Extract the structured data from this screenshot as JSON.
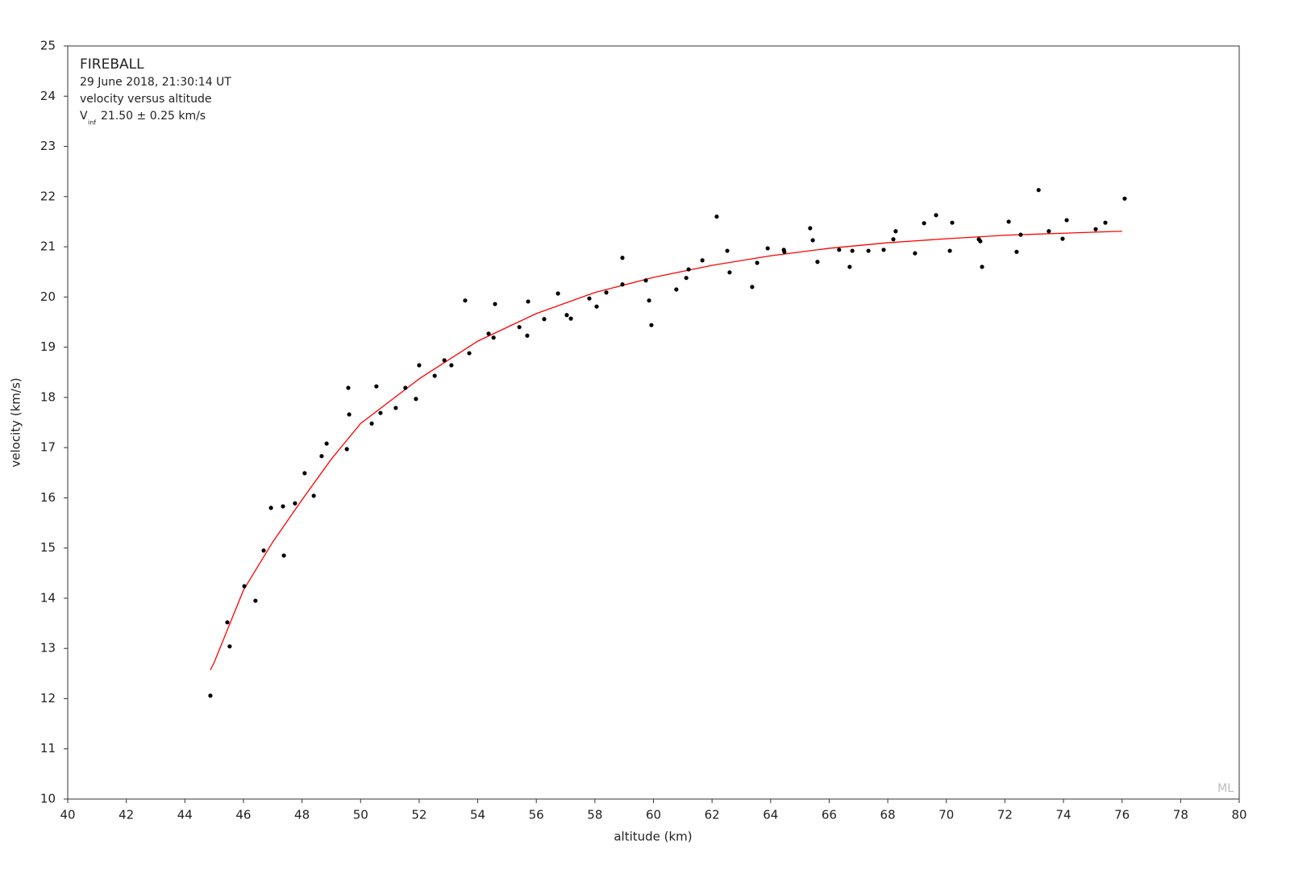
{
  "chart_data": {
    "type": "scatter",
    "annotations": [
      "FIREBALL",
      "29 June 2018, 21:30:14 UT",
      "velocity versus altitude"
    ],
    "vinf_label": {
      "symbol": "V",
      "subscript": "inf",
      "text": "21.50 ± 0.25 km/s"
    },
    "watermark": "ML",
    "xlabel": "altitude (km)",
    "ylabel": "velocity (km/s)",
    "xlim": [
      40,
      80
    ],
    "xticks": [
      40,
      42,
      44,
      46,
      48,
      50,
      52,
      54,
      56,
      58,
      60,
      62,
      64,
      66,
      68,
      70,
      72,
      74,
      76,
      78,
      80
    ],
    "ylim": [
      10,
      25
    ],
    "yticks": [
      10,
      11,
      12,
      13,
      14,
      15,
      16,
      17,
      18,
      19,
      20,
      21,
      22,
      23,
      24,
      25
    ],
    "color": "#000000",
    "x": [
      44.87,
      45.45,
      45.53,
      46.03,
      46.41,
      46.69,
      46.94,
      47.35,
      47.38,
      47.76,
      48.09,
      48.4,
      48.67,
      48.84,
      49.53,
      49.58,
      49.61,
      50.38,
      50.54,
      50.68,
      51.2,
      51.53,
      51.89,
      52.0,
      52.53,
      52.86,
      53.1,
      53.57,
      53.71,
      54.37,
      54.54,
      54.59,
      55.42,
      55.69,
      55.72,
      56.27,
      56.74,
      57.04,
      57.18,
      57.81,
      58.06,
      58.39,
      58.94,
      58.94,
      59.74,
      59.85,
      59.93,
      60.78,
      61.12,
      61.2,
      61.67,
      62.16,
      62.52,
      62.6,
      63.37,
      63.54,
      63.9,
      64.45,
      64.47,
      65.35,
      65.44,
      65.6,
      66.34,
      66.7,
      66.79,
      67.34,
      67.86,
      68.19,
      68.27,
      68.93,
      69.24,
      69.65,
      70.12,
      70.2,
      71.11,
      71.16,
      71.22,
      72.13,
      72.4,
      72.54,
      73.15,
      73.5,
      73.97,
      74.11,
      75.1,
      75.43,
      76.09
    ],
    "values": [
      12.06,
      13.52,
      13.04,
      14.24,
      13.95,
      14.95,
      15.8,
      15.83,
      14.85,
      15.89,
      16.49,
      16.04,
      16.83,
      17.08,
      16.97,
      18.19,
      17.66,
      17.48,
      18.22,
      17.69,
      17.79,
      18.19,
      17.97,
      18.64,
      18.43,
      18.74,
      18.64,
      19.93,
      18.88,
      19.27,
      19.19,
      19.86,
      19.4,
      19.23,
      19.91,
      19.56,
      20.07,
      19.64,
      19.57,
      19.97,
      19.81,
      20.09,
      20.78,
      20.25,
      20.33,
      19.93,
      19.44,
      20.15,
      20.38,
      20.55,
      20.73,
      21.6,
      20.92,
      20.49,
      20.2,
      20.68,
      20.97,
      20.94,
      20.9,
      21.37,
      21.13,
      20.7,
      20.94,
      20.6,
      20.92,
      20.92,
      20.94,
      21.15,
      21.31,
      20.87,
      21.47,
      21.63,
      20.92,
      21.48,
      21.15,
      21.11,
      20.6,
      21.5,
      20.9,
      21.24,
      22.13,
      21.31,
      21.16,
      21.53,
      21.35,
      21.48,
      21.96
    ],
    "fit": {
      "color": "#ff0000",
      "x": [
        44.87,
        45,
        46,
        47,
        48,
        49,
        50,
        52,
        54,
        56,
        58,
        60,
        62,
        64,
        66,
        68,
        70,
        72,
        74,
        76
      ],
      "values": [
        12.57,
        12.72,
        14.16,
        15.12,
        15.96,
        16.77,
        17.48,
        18.37,
        19.12,
        19.67,
        20.09,
        20.39,
        20.63,
        20.82,
        20.97,
        21.08,
        21.16,
        21.23,
        21.27,
        21.31
      ]
    }
  }
}
